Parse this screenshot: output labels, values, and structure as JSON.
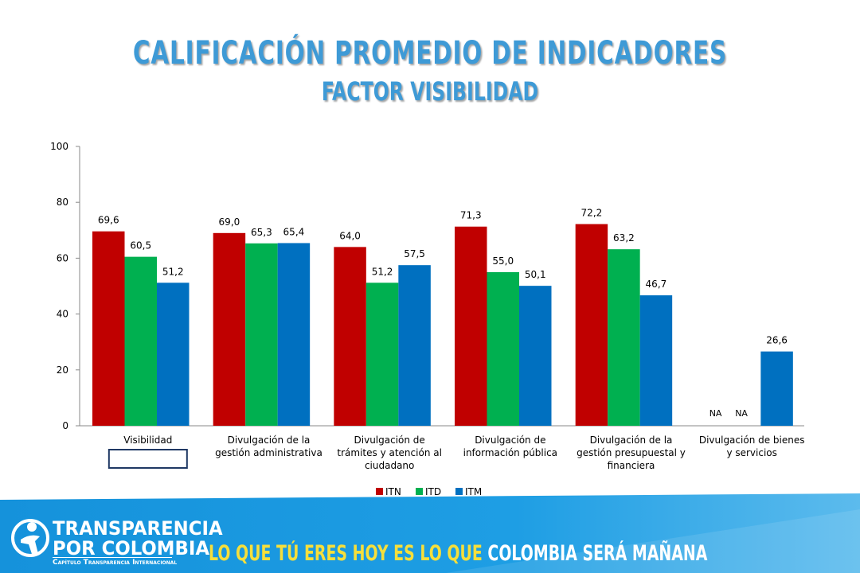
{
  "title_line1": "CALIFICACIÓN PROMEDIO DE INDICADORES",
  "title_line2": "FACTOR VISIBILIDAD",
  "chart_data": {
    "type": "bar",
    "categories": [
      [
        "Visibilidad"
      ],
      [
        "Divulgación de  la",
        "gestión administrativa"
      ],
      [
        "Divulgación de",
        "trámites  y atención al",
        "ciudadano"
      ],
      [
        "Divulgación de",
        "información pública"
      ],
      [
        "Divulgación de la",
        "gestión presupuestal y",
        "financiera"
      ],
      [
        "Divulgación   de bienes",
        "y servicios"
      ]
    ],
    "series": [
      {
        "name": "ITN",
        "color": "#c00000",
        "values": [
          69.6,
          69.0,
          64.0,
          71.3,
          72.2,
          null
        ],
        "labels": [
          "69,6",
          "69,0",
          "64,0",
          "71,3",
          "72,2",
          "NA"
        ]
      },
      {
        "name": "ITD",
        "color": "#00b050",
        "values": [
          60.5,
          65.3,
          51.2,
          55.0,
          63.2,
          null
        ],
        "labels": [
          "60,5",
          "65,3",
          "51,2",
          "55,0",
          "63,2",
          "NA"
        ]
      },
      {
        "name": "ITM",
        "color": "#0070c0",
        "values": [
          51.2,
          65.4,
          57.5,
          50.1,
          46.7,
          26.6
        ],
        "labels": [
          "51,2",
          "65,4",
          "57,5",
          "50,1",
          "46,7",
          "26,6"
        ]
      }
    ],
    "ylim": [
      0,
      100
    ],
    "yticks": [
      "0",
      "20",
      "40",
      "60",
      "80",
      "100"
    ],
    "legend": "bottom",
    "highlighted_category": "Visibilidad"
  },
  "footer": {
    "brand_line1": "TRANSPARENCIA",
    "brand_line2": "POR COLOMBIA",
    "brand_sub": "Capítulo Transparencia Internacional",
    "slogan_part1": "LO QUE TÚ ERES HOY ES LO QUE ",
    "slogan_part2": "COLOMBIA SERÁ MAÑANA",
    "colors": {
      "band": "#1e9ee4",
      "band_light": "#66c3f1",
      "slogan_yellow": "#f6df3b"
    }
  }
}
